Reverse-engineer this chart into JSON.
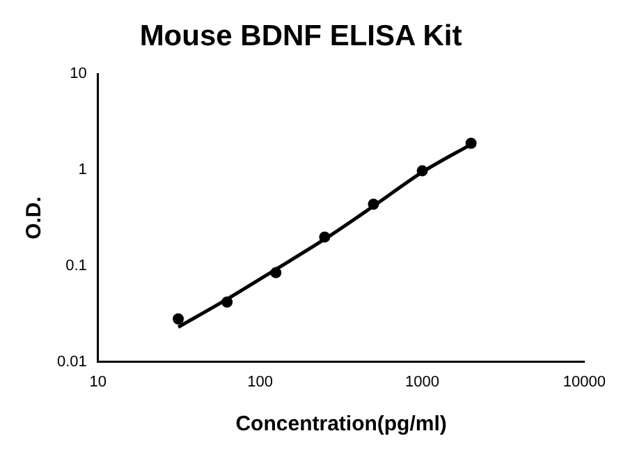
{
  "chart_data": {
    "type": "scatter",
    "title": "Mouse BDNF ELISA Kit",
    "xlabel": "Concentration(pg/ml)",
    "ylabel": "O.D.",
    "log": "xy",
    "xlim": [
      10,
      10000
    ],
    "xticks": [
      10,
      100,
      1000,
      10000
    ],
    "ylim": [
      0.01,
      10
    ],
    "yticks": [
      0.01,
      0.1,
      1,
      10
    ],
    "grid": false,
    "legend": false,
    "marker": "circle",
    "series": [
      {
        "color": "#000000",
        "x": [
          31.25,
          62.5,
          125,
          250,
          500,
          1000,
          2000
        ],
        "values": [
          0.028,
          0.042,
          0.085,
          0.2,
          0.44,
          0.98,
          1.9
        ]
      },
      {
        "type": "line",
        "color": "#000000",
        "line_style": "solid",
        "marker": "none",
        "x": [
          31.25,
          62.5,
          125,
          250,
          500,
          1000,
          2000
        ],
        "values": [
          0.023,
          0.045,
          0.092,
          0.19,
          0.42,
          0.95,
          1.85
        ]
      }
    ]
  }
}
